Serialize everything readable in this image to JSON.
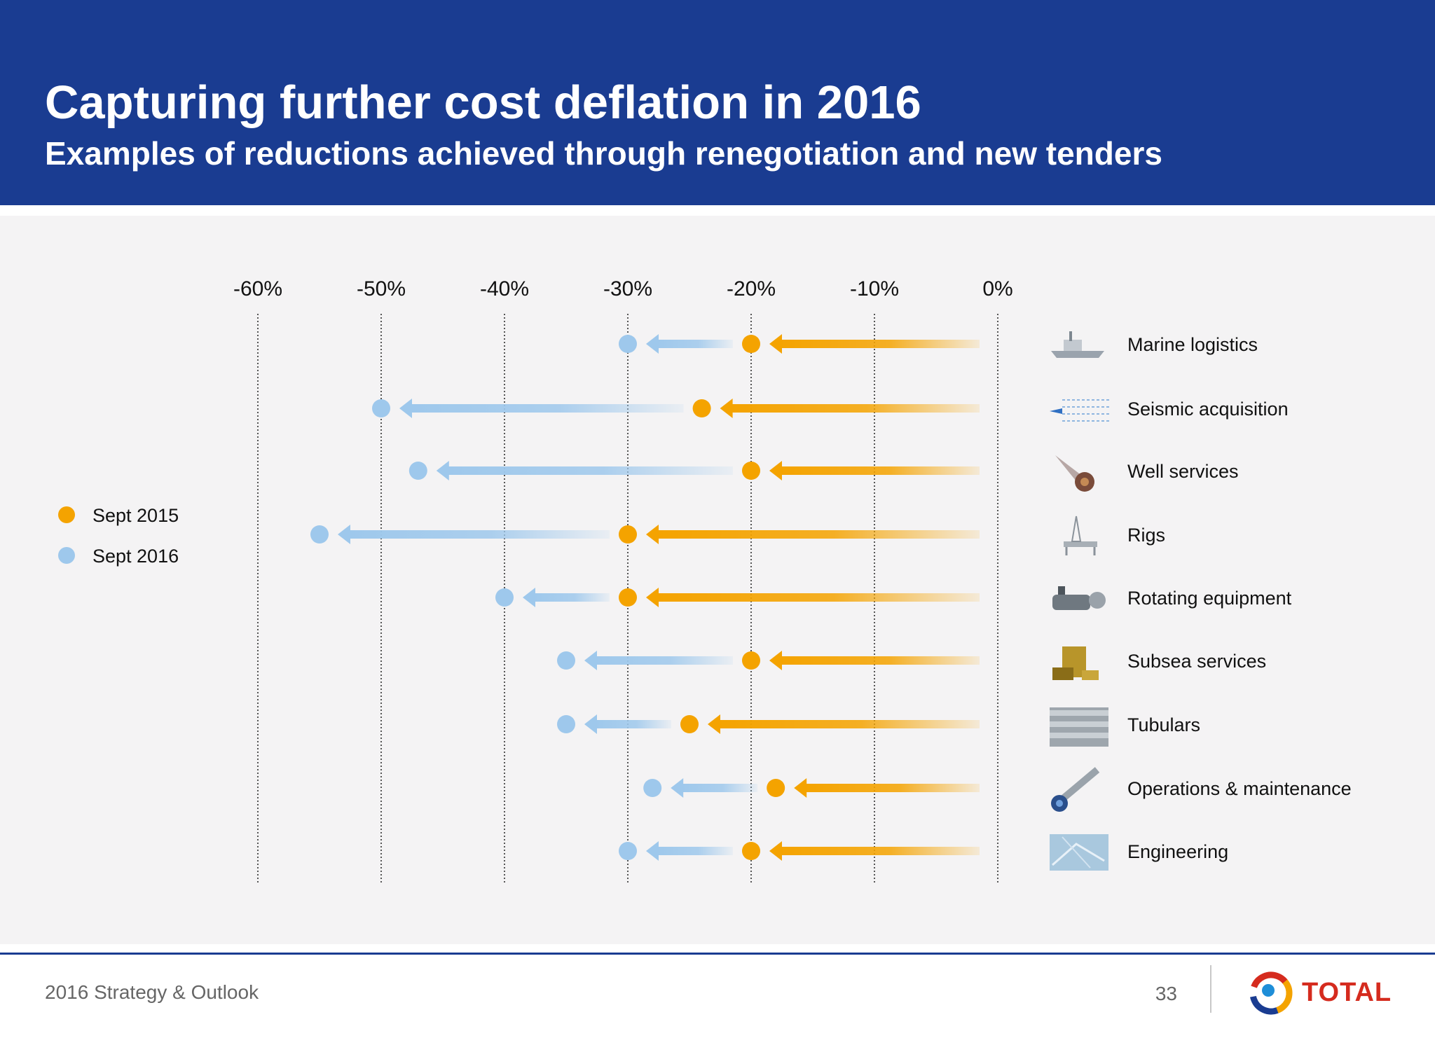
{
  "header": {
    "title": "Capturing further cost deflation in 2016",
    "subtitle": "Examples of reductions achieved through renegotiation and new tenders"
  },
  "footer": {
    "text": "2016 Strategy & Outlook",
    "page": "33",
    "brand": "TOTAL"
  },
  "colors": {
    "header_bg": "#1a3c91",
    "sept_2015": "#f4a300",
    "sept_2016": "#9ec8ec",
    "panel_bg": "#f4f3f4",
    "brand_red": "#d52b1e"
  },
  "chart_data": {
    "type": "scatter",
    "title": "",
    "xlabel": "",
    "ylabel": "",
    "x_axis_position": "top",
    "xlim": [
      -60,
      0
    ],
    "xticks": [
      -60,
      -50,
      -40,
      -30,
      -20,
      -10,
      0
    ],
    "xtick_labels": [
      "-60%",
      "-50%",
      "-40%",
      "-30%",
      "-20%",
      "-10%",
      "0%"
    ],
    "grid": "vertical dotted",
    "legend_position": "left",
    "categories": [
      "Marine logistics",
      "Seismic acquisition",
      "Well services",
      "Rigs",
      "Rotating equipment",
      "Subsea services",
      "Tubulars",
      "Operations & maintenance",
      "Engineering"
    ],
    "category_icons": [
      "ship-icon",
      "seismic-streamer-icon",
      "drill-bit-icon",
      "rig-icon",
      "pump-icon",
      "subsea-module-icon",
      "pipes-icon",
      "valve-icon",
      "engineering-icon"
    ],
    "series": [
      {
        "name": "Sept 2015",
        "values": [
          -20,
          -24,
          -20,
          -30,
          -30,
          -20,
          -25,
          -18,
          -20
        ]
      },
      {
        "name": "Sept 2016",
        "values": [
          -30,
          -50,
          -47,
          -55,
          -40,
          -35,
          -35,
          -28,
          -30
        ]
      }
    ]
  }
}
